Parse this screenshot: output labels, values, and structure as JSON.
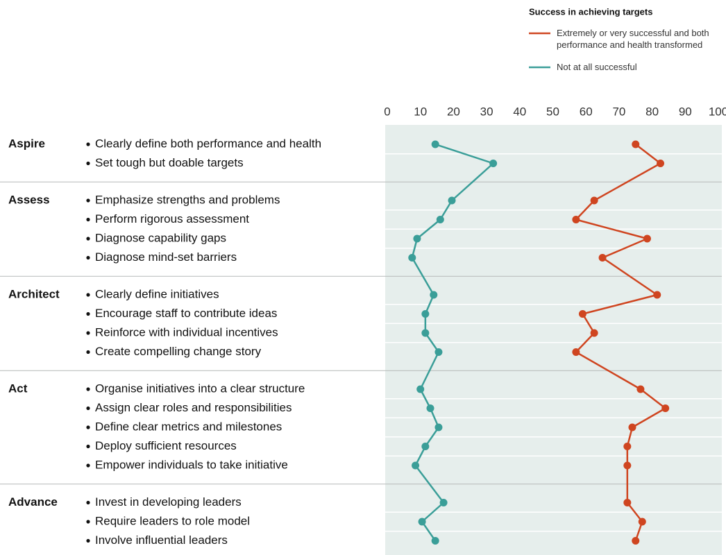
{
  "chart_data": {
    "type": "line",
    "orientation": "horizontal",
    "legend_title": "Success in achieving targets",
    "groups": [
      {
        "name": "Aspire",
        "items": [
          "Clearly define both performance and health",
          "Set tough but doable targets"
        ]
      },
      {
        "name": "Assess",
        "items": [
          "Emphasize strengths and problems",
          "Perform rigorous assessment",
          "Diagnose capability gaps",
          "Diagnose mind-set barriers"
        ]
      },
      {
        "name": "Architect",
        "items": [
          "Clearly define initiatives",
          "Encourage staff to contribute ideas",
          "Reinforce with individual incentives",
          "Create compelling change story"
        ]
      },
      {
        "name": "Act",
        "items": [
          "Organise initiatives into a clear structure",
          "Assign clear roles and responsibilities",
          "Define clear metrics and milestones",
          "Deploy sufficient resources",
          "Empower individuals to take initiative"
        ]
      },
      {
        "name": "Advance",
        "items": [
          "Invest in developing leaders",
          "Require leaders to role model",
          "Involve influential leaders"
        ]
      }
    ],
    "series": [
      {
        "name": "Extremely or very successful and both performance and health transformed",
        "color": "#cf4520",
        "values": [
          75,
          82.5,
          62.5,
          57,
          78.5,
          65,
          81.5,
          59,
          62.5,
          57,
          76.5,
          84,
          74,
          72.5,
          72.5,
          72.5,
          77,
          75
        ]
      },
      {
        "name": "Not at all successful",
        "color": "#3a9e98",
        "values": [
          14.5,
          32,
          19.5,
          16,
          9,
          7.5,
          14,
          11.5,
          11.5,
          15.5,
          10,
          13,
          15.5,
          11.5,
          8.5,
          17,
          10.5,
          14.5
        ]
      }
    ],
    "xlim": [
      0,
      100
    ],
    "xticks": [
      0,
      10,
      20,
      30,
      40,
      50,
      60,
      70,
      80,
      90,
      100
    ]
  }
}
